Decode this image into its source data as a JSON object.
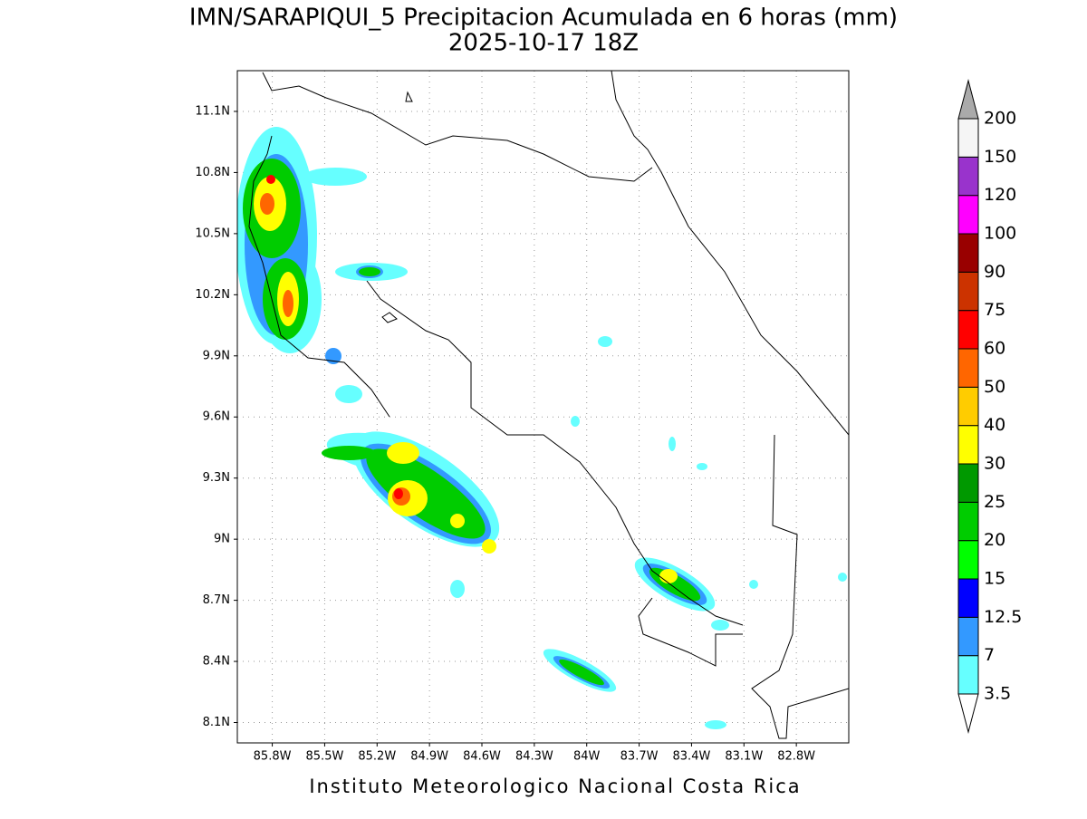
{
  "title": "IMN/SARAPIQUI_5 Precipitacion Acumulada en 6 horas (mm)",
  "subtitle": "2025-10-17 18Z",
  "footer": "Instituto Meteorologico Nacional Costa Rica",
  "map": {
    "xlim": [
      -86,
      -82.5
    ],
    "ylim": [
      8,
      11.3
    ],
    "yticks": [
      {
        "value": 11.1,
        "label": "11.1N"
      },
      {
        "value": 10.8,
        "label": "10.8N"
      },
      {
        "value": 10.5,
        "label": "10.5N"
      },
      {
        "value": 10.2,
        "label": "10.2N"
      },
      {
        "value": 9.9,
        "label": "9.9N"
      },
      {
        "value": 9.6,
        "label": "9.6N"
      },
      {
        "value": 9.3,
        "label": "9.3N"
      },
      {
        "value": 9,
        "label": "9N"
      },
      {
        "value": 8.7,
        "label": "8.7N"
      },
      {
        "value": 8.4,
        "label": "8.4N"
      },
      {
        "value": 8.1,
        "label": "8.1N"
      }
    ],
    "xticks": [
      {
        "value": -85.8,
        "label": "85.8W"
      },
      {
        "value": -85.5,
        "label": "85.5W"
      },
      {
        "value": -85.2,
        "label": "85.2W"
      },
      {
        "value": -84.9,
        "label": "84.9W"
      },
      {
        "value": -84.6,
        "label": "84.6W"
      },
      {
        "value": -84.3,
        "label": "84.3W"
      },
      {
        "value": -84,
        "label": "84W"
      },
      {
        "value": -83.7,
        "label": "83.7W"
      },
      {
        "value": -83.4,
        "label": "83.4W"
      },
      {
        "value": -83.1,
        "label": "83.1W"
      },
      {
        "value": -82.8,
        "label": "82.8W"
      }
    ],
    "grid": true
  },
  "colorbar": {
    "levels": [
      3.5,
      7,
      12.5,
      15,
      20,
      25,
      30,
      40,
      50,
      60,
      75,
      90,
      100,
      120,
      150,
      200
    ],
    "colors": [
      "#66ffff",
      "#3399ff",
      "#0000ff",
      "#00ff00",
      "#00cc00",
      "#009900",
      "#ffff00",
      "#ffcc00",
      "#ff6600",
      "#ff0000",
      "#cc3300",
      "#990000",
      "#ff00ff",
      "#9933cc",
      "#f5f5f5"
    ],
    "under_color": "#ffffff",
    "over_color": "#aaaaaa"
  }
}
